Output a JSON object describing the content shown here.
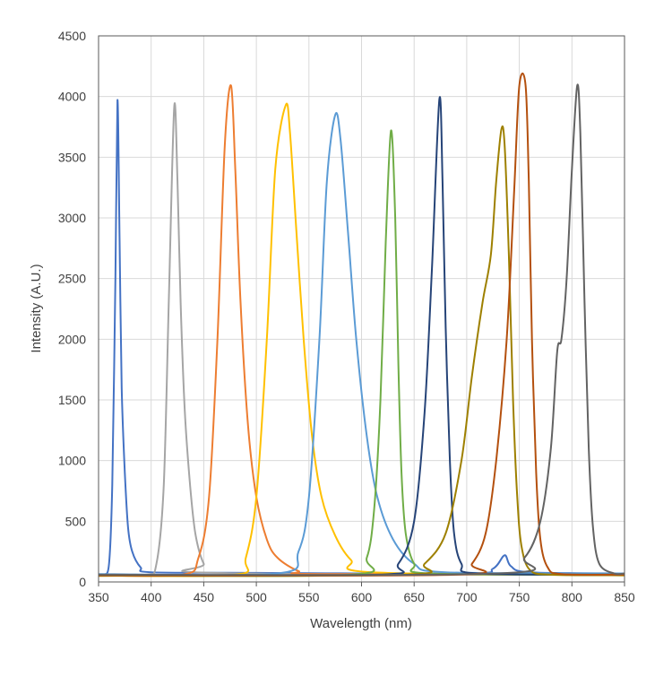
{
  "chart_data": {
    "type": "line",
    "title": "",
    "xlabel": "Wavelength (nm)",
    "ylabel": "Intensity (A.U.)",
    "xlim": [
      350,
      850
    ],
    "ylim": [
      0,
      4500
    ],
    "xticks": [
      350,
      400,
      450,
      500,
      550,
      600,
      650,
      700,
      750,
      800,
      850
    ],
    "yticks": [
      0,
      500,
      1000,
      1500,
      2000,
      2500,
      3000,
      3500,
      4000,
      4500
    ],
    "grid": true,
    "legend": "none",
    "series": [
      {
        "color": "#4472C4",
        "points": [
          [
            350,
            60
          ],
          [
            355,
            60
          ],
          [
            360,
            150
          ],
          [
            363,
            800
          ],
          [
            366,
            2500
          ],
          [
            368,
            3970
          ],
          [
            370,
            2800
          ],
          [
            372,
            1600
          ],
          [
            375,
            900
          ],
          [
            378,
            450
          ],
          [
            382,
            250
          ],
          [
            390,
            120
          ],
          [
            400,
            80
          ],
          [
            500,
            75
          ],
          [
            700,
            70
          ],
          [
            725,
            110
          ],
          [
            736,
            220
          ],
          [
            742,
            130
          ],
          [
            760,
            80
          ],
          [
            850,
            70
          ]
        ]
      },
      {
        "color": "#A5A5A5",
        "points": [
          [
            350,
            55
          ],
          [
            395,
            60
          ],
          [
            405,
            150
          ],
          [
            412,
            800
          ],
          [
            417,
            2400
          ],
          [
            422,
            3920
          ],
          [
            425,
            3300
          ],
          [
            428,
            2300
          ],
          [
            432,
            1400
          ],
          [
            437,
            800
          ],
          [
            442,
            400
          ],
          [
            450,
            150
          ],
          [
            460,
            75
          ],
          [
            850,
            60
          ]
        ]
      },
      {
        "color": "#ED7D31",
        "points": [
          [
            350,
            55
          ],
          [
            430,
            60
          ],
          [
            445,
            200
          ],
          [
            455,
            700
          ],
          [
            463,
            2000
          ],
          [
            470,
            3600
          ],
          [
            476,
            4090
          ],
          [
            480,
            3400
          ],
          [
            485,
            2300
          ],
          [
            492,
            1300
          ],
          [
            500,
            700
          ],
          [
            510,
            350
          ],
          [
            520,
            200
          ],
          [
            540,
            90
          ],
          [
            560,
            65
          ],
          [
            850,
            60
          ]
        ]
      },
      {
        "color": "#FFC000",
        "points": [
          [
            350,
            55
          ],
          [
            480,
            60
          ],
          [
            490,
            200
          ],
          [
            500,
            700
          ],
          [
            510,
            2000
          ],
          [
            518,
            3400
          ],
          [
            528,
            3930
          ],
          [
            532,
            3700
          ],
          [
            538,
            2900
          ],
          [
            545,
            2000
          ],
          [
            553,
            1200
          ],
          [
            562,
            700
          ],
          [
            575,
            380
          ],
          [
            590,
            180
          ],
          [
            610,
            80
          ],
          [
            850,
            55
          ]
        ]
      },
      {
        "color": "#5B9BD5",
        "points": [
          [
            350,
            65
          ],
          [
            520,
            70
          ],
          [
            540,
            250
          ],
          [
            550,
            700
          ],
          [
            560,
            2000
          ],
          [
            567,
            3300
          ],
          [
            575,
            3850
          ],
          [
            580,
            3650
          ],
          [
            587,
            2900
          ],
          [
            595,
            2000
          ],
          [
            605,
            1200
          ],
          [
            615,
            700
          ],
          [
            630,
            350
          ],
          [
            650,
            150
          ],
          [
            680,
            80
          ],
          [
            850,
            70
          ]
        ]
      },
      {
        "color": "#70AD47",
        "points": [
          [
            350,
            55
          ],
          [
            590,
            60
          ],
          [
            605,
            200
          ],
          [
            612,
            600
          ],
          [
            618,
            1500
          ],
          [
            623,
            2800
          ],
          [
            628,
            3720
          ],
          [
            632,
            3000
          ],
          [
            635,
            1800
          ],
          [
            638,
            900
          ],
          [
            642,
            400
          ],
          [
            650,
            150
          ],
          [
            665,
            70
          ],
          [
            850,
            60
          ]
        ]
      },
      {
        "color": "#264478",
        "points": [
          [
            350,
            55
          ],
          [
            615,
            60
          ],
          [
            635,
            150
          ],
          [
            650,
            500
          ],
          [
            660,
            1400
          ],
          [
            667,
            2600
          ],
          [
            674,
            3980
          ],
          [
            677,
            3300
          ],
          [
            680,
            2100
          ],
          [
            684,
            1000
          ],
          [
            688,
            400
          ],
          [
            695,
            150
          ],
          [
            710,
            70
          ],
          [
            850,
            60
          ]
        ]
      },
      {
        "color": "#9E8000",
        "points": [
          [
            350,
            50
          ],
          [
            640,
            60
          ],
          [
            660,
            150
          ],
          [
            680,
            400
          ],
          [
            695,
            1000
          ],
          [
            705,
            1700
          ],
          [
            715,
            2300
          ],
          [
            723,
            2700
          ],
          [
            728,
            3300
          ],
          [
            733,
            3730
          ],
          [
            736,
            3600
          ],
          [
            740,
            2700
          ],
          [
            744,
            1500
          ],
          [
            748,
            700
          ],
          [
            752,
            300
          ],
          [
            760,
            100
          ],
          [
            780,
            60
          ],
          [
            850,
            55
          ]
        ]
      },
      {
        "color": "#B4500E",
        "points": [
          [
            350,
            55
          ],
          [
            690,
            60
          ],
          [
            705,
            150
          ],
          [
            718,
            400
          ],
          [
            728,
            1000
          ],
          [
            738,
            2000
          ],
          [
            745,
            3200
          ],
          [
            750,
            4090
          ],
          [
            756,
            4090
          ],
          [
            759,
            3300
          ],
          [
            762,
            2000
          ],
          [
            766,
            900
          ],
          [
            770,
            350
          ],
          [
            777,
            120
          ],
          [
            790,
            65
          ],
          [
            850,
            60
          ]
        ]
      },
      {
        "color": "#636363",
        "points": [
          [
            350,
            60
          ],
          [
            730,
            70
          ],
          [
            755,
            200
          ],
          [
            770,
            500
          ],
          [
            780,
            1100
          ],
          [
            786,
            1900
          ],
          [
            790,
            2000
          ],
          [
            795,
            2500
          ],
          [
            800,
            3400
          ],
          [
            805,
            4090
          ],
          [
            808,
            3700
          ],
          [
            812,
            2300
          ],
          [
            816,
            1100
          ],
          [
            820,
            450
          ],
          [
            826,
            150
          ],
          [
            840,
            70
          ],
          [
            850,
            70
          ]
        ]
      }
    ]
  }
}
